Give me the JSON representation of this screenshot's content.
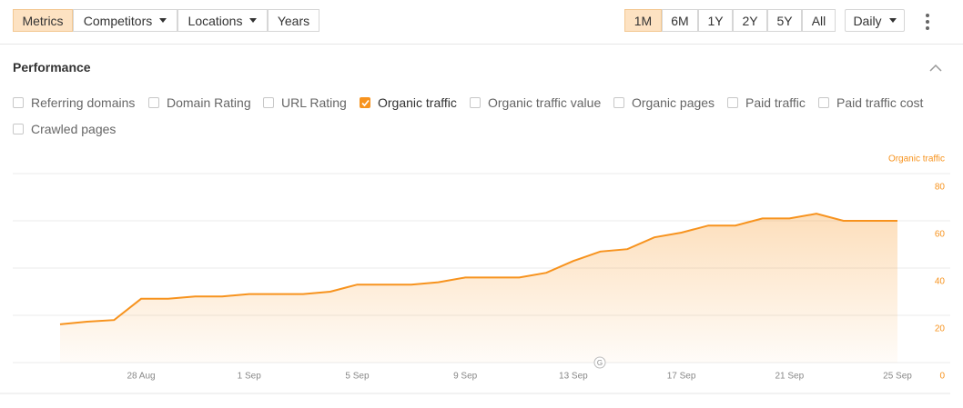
{
  "toolbar": {
    "tabs": [
      {
        "label": "Metrics",
        "dropdown": false,
        "active": true
      },
      {
        "label": "Competitors",
        "dropdown": true,
        "active": false
      },
      {
        "label": "Locations",
        "dropdown": true,
        "active": false
      },
      {
        "label": "Years",
        "dropdown": false,
        "active": false
      }
    ],
    "ranges": [
      {
        "label": "1M",
        "active": true
      },
      {
        "label": "6M",
        "active": false
      },
      {
        "label": "1Y",
        "active": false
      },
      {
        "label": "2Y",
        "active": false
      },
      {
        "label": "5Y",
        "active": false
      },
      {
        "label": "All",
        "active": false
      }
    ],
    "interval": "Daily"
  },
  "section": {
    "title": "Performance"
  },
  "checkboxes": [
    {
      "label": "Referring domains",
      "checked": false
    },
    {
      "label": "Domain Rating",
      "checked": false
    },
    {
      "label": "URL Rating",
      "checked": false
    },
    {
      "label": "Organic traffic",
      "checked": true
    },
    {
      "label": "Organic traffic value",
      "checked": false
    },
    {
      "label": "Organic pages",
      "checked": false
    },
    {
      "label": "Paid traffic",
      "checked": false
    },
    {
      "label": "Paid traffic cost",
      "checked": false
    },
    {
      "label": "Crawled pages",
      "checked": false
    }
  ],
  "chart_data": {
    "type": "line",
    "y_axis_label": "Organic traffic",
    "color": "#f7931e",
    "categories": [
      null,
      null,
      null,
      "28 Aug",
      null,
      null,
      null,
      "1 Sep",
      null,
      null,
      null,
      "5 Sep",
      null,
      null,
      null,
      "9 Sep",
      null,
      null,
      null,
      "13 Sep",
      null,
      null,
      null,
      "17 Sep",
      null,
      null,
      null,
      "21 Sep",
      null,
      null,
      null,
      "25 Sep"
    ],
    "values": [
      16.2,
      17.3,
      18,
      27,
      27,
      28,
      28,
      29,
      29,
      29,
      30,
      33,
      33,
      33,
      34,
      36,
      36,
      36,
      38,
      43,
      47,
      48,
      53,
      55,
      58,
      58,
      61,
      61,
      63,
      60,
      60,
      60
    ],
    "ylim": [
      0,
      80
    ],
    "yticks": [
      0,
      20,
      40,
      60,
      80
    ],
    "grid": true
  }
}
